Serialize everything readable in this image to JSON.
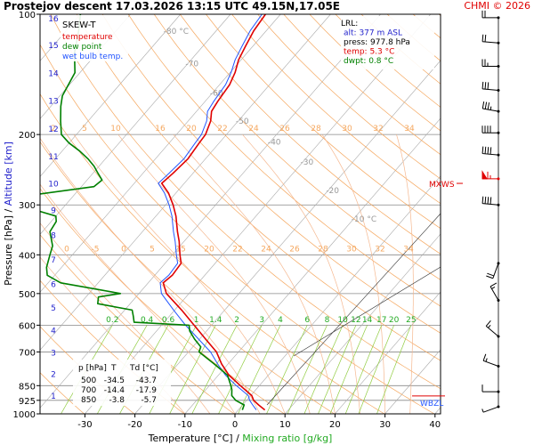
{
  "header": {
    "title": "Prostejov   descent   17.03.2026 13:15 UTC   49.15N,17.05E",
    "copyright": "CHMI © 2026"
  },
  "colors": {
    "temperature": "#e00000",
    "dewpoint": "#008000",
    "wetbulb": "#2255ff",
    "isotherm": "#aaaaaa",
    "dry_adiabat": "#f5a860",
    "moist_adiabat": "#f5b890",
    "mixing_ratio": "#90cc40",
    "isobar": "#888888",
    "copyright": "#e00000",
    "mixing_label": "#22aa22",
    "altitude_label": "#2222cc"
  },
  "chart_data": {
    "type": "skew-t",
    "title": "SKEW-T",
    "xlabel_parts": {
      "temperature": "Temperature [°C]",
      "separator": "/",
      "mixing": "Mixing ratio [g/kg]"
    },
    "ylabel_parts": {
      "pressure": "Pressure [hPa]",
      "separator": "/",
      "altitude": "Altitude [km]"
    },
    "x_ticks": [
      -30,
      -20,
      -10,
      0,
      10,
      20,
      30,
      40
    ],
    "xlim": [
      -36,
      46
    ],
    "ylim": [
      1000,
      100
    ],
    "pressure_ticks": [
      100,
      200,
      300,
      400,
      500,
      600,
      700,
      850,
      925,
      1000
    ],
    "altitude_ticks": [
      {
        "km": "1",
        "p": 897
      },
      {
        "km": "2",
        "p": 792
      },
      {
        "km": "3",
        "p": 700
      },
      {
        "km": "4",
        "p": 616
      },
      {
        "km": "5",
        "p": 540
      },
      {
        "km": "6",
        "p": 472
      },
      {
        "km": "7",
        "p": 410
      },
      {
        "km": "8",
        "p": 356
      },
      {
        "km": "9",
        "p": 308
      },
      {
        "km": "10",
        "p": 264
      },
      {
        "km": "11",
        "p": 226
      },
      {
        "km": "12",
        "p": 193
      },
      {
        "km": "13",
        "p": 164
      },
      {
        "km": "14",
        "p": 140
      },
      {
        "km": "15",
        "p": 119
      },
      {
        "km": "16",
        "p": 102
      }
    ],
    "legend": {
      "placement": "top-left",
      "entries": [
        {
          "label": "temperature",
          "color": "#e00000"
        },
        {
          "label": "dew point",
          "color": "#008000"
        },
        {
          "label": "wet bulb temp.",
          "color": "#2255ff"
        }
      ]
    },
    "info_box": {
      "placement": "top-right",
      "lines": [
        {
          "text": "LRL:",
          "color": "#000000"
        },
        {
          "text": "alt: 377 m ASL",
          "color": "#2222cc"
        },
        {
          "text": "press: 977.8 hPa",
          "color": "#000000"
        },
        {
          "text": "temp: 5.3 °C",
          "color": "#e00000"
        },
        {
          "text": "dwpt: 0.8 °C",
          "color": "#008000"
        }
      ]
    },
    "level_table": {
      "headers": [
        "p [hPa]",
        "T",
        "Td [°C]"
      ],
      "rows": [
        [
          "500",
          "-34.5",
          "-43.7"
        ],
        [
          "700",
          "-14.4",
          "-17.9"
        ],
        [
          "850",
          "-3.8",
          "-5.7"
        ]
      ]
    },
    "isotherm_labels": [
      {
        "text": "-80 °C",
        "t": -80,
        "p": 112
      },
      {
        "text": "-70",
        "t": -70,
        "p": 135
      },
      {
        "text": "-60",
        "t": -60,
        "p": 160
      },
      {
        "text": "-50",
        "t": -50,
        "p": 188
      },
      {
        "text": "-40",
        "t": -40,
        "p": 212
      },
      {
        "text": "-30",
        "t": -30,
        "p": 238
      },
      {
        "text": "-20",
        "t": -20,
        "p": 280
      },
      {
        "text": "-10 °C",
        "t": -10,
        "p": 330
      }
    ],
    "adiabat_labels_top": [
      "2",
      "5",
      "10",
      "16",
      "20",
      "22",
      "24",
      "26",
      "28",
      "30",
      "32",
      "34"
    ],
    "adiabat_labels_mid": [
      "0",
      "-5",
      "0",
      "5",
      "15",
      "20",
      "22",
      "24",
      "26",
      "28",
      "30",
      "32",
      "34"
    ],
    "mixing_ratios": [
      0.2,
      0.4,
      0.6,
      1,
      1.4,
      2,
      3,
      4,
      6,
      8,
      10,
      12,
      14,
      17,
      20,
      25
    ],
    "mixing_ratio_labels": [
      "0.2",
      "0.4",
      "0.6",
      "1",
      "1.4",
      "2",
      "3",
      "4",
      "6",
      "8",
      "10",
      "12",
      "14",
      "17",
      "20",
      "25"
    ],
    "markers": [
      {
        "text": "MXWS",
        "p": 265
      },
      {
        "text": "WBZL",
        "p": 930
      }
    ],
    "temperature": [
      [
        977.8,
        5.3
      ],
      [
        950,
        3.2
      ],
      [
        925,
        1.4
      ],
      [
        900,
        0.2
      ],
      [
        850,
        -3.8
      ],
      [
        800,
        -7.9
      ],
      [
        750,
        -11.3
      ],
      [
        700,
        -14.4
      ],
      [
        650,
        -18.8
      ],
      [
        600,
        -23.5
      ],
      [
        550,
        -28.6
      ],
      [
        500,
        -34.5
      ],
      [
        470,
        -37.0
      ],
      [
        450,
        -36.5
      ],
      [
        420,
        -36.8
      ],
      [
        400,
        -38.5
      ],
      [
        370,
        -41.0
      ],
      [
        350,
        -43.0
      ],
      [
        320,
        -46.0
      ],
      [
        300,
        -48.5
      ],
      [
        280,
        -51.5
      ],
      [
        265,
        -54.5
      ],
      [
        250,
        -54.0
      ],
      [
        230,
        -53.5
      ],
      [
        210,
        -54.0
      ],
      [
        200,
        -54.2
      ],
      [
        185,
        -55.5
      ],
      [
        175,
        -57.0
      ],
      [
        165,
        -57.5
      ],
      [
        150,
        -58.0
      ],
      [
        140,
        -59.0
      ],
      [
        130,
        -60.5
      ],
      [
        120,
        -61.5
      ],
      [
        110,
        -62.5
      ],
      [
        100,
        -63.0
      ]
    ],
    "wetbulb": [
      [
        977.8,
        3.6
      ],
      [
        950,
        2.0
      ],
      [
        925,
        0.6
      ],
      [
        900,
        -0.5
      ],
      [
        850,
        -4.6
      ],
      [
        800,
        -8.6
      ],
      [
        750,
        -12.1
      ],
      [
        700,
        -15.6
      ],
      [
        650,
        -20.2
      ],
      [
        600,
        -25.2
      ],
      [
        550,
        -30.2
      ],
      [
        500,
        -35.5
      ],
      [
        470,
        -37.6
      ],
      [
        450,
        -37.2
      ],
      [
        420,
        -37.5
      ],
      [
        400,
        -39.2
      ],
      [
        370,
        -41.8
      ],
      [
        350,
        -43.8
      ],
      [
        320,
        -46.8
      ],
      [
        300,
        -49.3
      ],
      [
        280,
        -52.3
      ],
      [
        265,
        -55.2
      ],
      [
        250,
        -54.8
      ],
      [
        230,
        -54.3
      ],
      [
        210,
        -54.8
      ],
      [
        200,
        -55.0
      ],
      [
        185,
        -56.3
      ],
      [
        175,
        -57.8
      ],
      [
        165,
        -58.3
      ],
      [
        150,
        -58.8
      ],
      [
        140,
        -59.8
      ],
      [
        130,
        -61.2
      ],
      [
        120,
        -62.2
      ],
      [
        110,
        -63.2
      ],
      [
        100,
        -63.7
      ]
    ],
    "dewpoint": [
      [
        977.8,
        0.8
      ],
      [
        950,
        0.3
      ],
      [
        925,
        -2.2
      ],
      [
        900,
        -3.8
      ],
      [
        870,
        -4.8
      ],
      [
        850,
        -5.7
      ],
      [
        800,
        -8.2
      ],
      [
        750,
        -12.8
      ],
      [
        700,
        -17.9
      ],
      [
        680,
        -18.4
      ],
      [
        650,
        -21.0
      ],
      [
        620,
        -23.4
      ],
      [
        600,
        -24.5
      ],
      [
        590,
        -36.0
      ],
      [
        570,
        -37.2
      ],
      [
        550,
        -38.5
      ],
      [
        530,
        -46.5
      ],
      [
        510,
        -47.5
      ],
      [
        500,
        -43.7
      ],
      [
        470,
        -57.5
      ],
      [
        450,
        -61.5
      ],
      [
        430,
        -63.0
      ],
      [
        400,
        -64.5
      ],
      [
        380,
        -65.5
      ],
      [
        350,
        -68.5
      ],
      [
        330,
        -69.0
      ],
      [
        320,
        -70.0
      ],
      [
        300,
        -79.5
      ],
      [
        285,
        -79.5
      ],
      [
        270,
        -67.5
      ],
      [
        260,
        -67.0
      ],
      [
        250,
        -69.0
      ],
      [
        240,
        -71.0
      ],
      [
        230,
        -73.5
      ],
      [
        220,
        -76.5
      ],
      [
        210,
        -80.0
      ],
      [
        200,
        -83.0
      ],
      [
        185,
        -85.5
      ],
      [
        170,
        -88.0
      ],
      [
        160,
        -89.5
      ],
      [
        140,
        -91.0
      ],
      [
        125,
        -94.5
      ],
      [
        110,
        -97.5
      ],
      [
        100,
        -100.0
      ]
    ],
    "wind_profile": [
      {
        "p": 102,
        "dir": 270,
        "speed": 20
      },
      {
        "p": 118,
        "dir": 275,
        "speed": 20
      },
      {
        "p": 135,
        "dir": 270,
        "speed": 25
      },
      {
        "p": 155,
        "dir": 275,
        "speed": 30
      },
      {
        "p": 175,
        "dir": 280,
        "speed": 35
      },
      {
        "p": 198,
        "dir": 270,
        "speed": 40
      },
      {
        "p": 225,
        "dir": 275,
        "speed": 40
      },
      {
        "p": 258,
        "dir": 270,
        "speed": 65
      },
      {
        "p": 300,
        "dir": 275,
        "speed": 40
      },
      {
        "p": 420,
        "dir": 200,
        "speed": 20
      },
      {
        "p": 520,
        "dir": 330,
        "speed": 15
      },
      {
        "p": 640,
        "dir": 310,
        "speed": 15
      },
      {
        "p": 760,
        "dir": 290,
        "speed": 15
      },
      {
        "p": 880,
        "dir": 270,
        "speed": 10
      },
      {
        "p": 960,
        "dir": 250,
        "speed": 5
      }
    ]
  }
}
